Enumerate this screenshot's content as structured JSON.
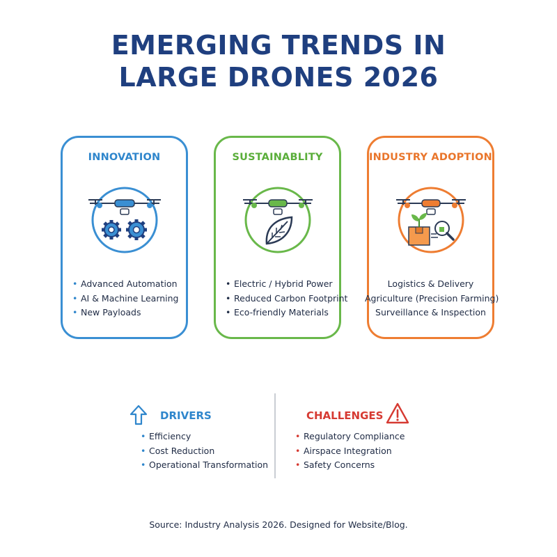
{
  "title": {
    "line1": "EMERGING TRENDS IN",
    "line2": "LARGE DRONES 2026"
  },
  "cards": [
    {
      "heading": "INNOVATION",
      "color": "#3a8fd3",
      "icon": "drone-gears-icon",
      "items": [
        "Advanced Automation",
        "AI & Machine Learning",
        "New Payloads"
      ]
    },
    {
      "heading": "SUSTAINABLITY",
      "color": "#69b84a",
      "icon": "drone-leaf-icon",
      "items": [
        "Electric / Hybrid Power",
        "Reduced Carbon Footprint",
        "Eco-friendly Materials"
      ]
    },
    {
      "heading": "INDUSTRY ADOPTION",
      "color": "#ee7d32",
      "icon": "drone-package-icon",
      "items": [
        "Logistics & Delivery",
        "Agriculture (Precision Farming)",
        "Surveillance & Inspection"
      ]
    }
  ],
  "drivers": {
    "heading": "DRIVERS",
    "icon": "up-arrow-icon",
    "color": "#2f86cc",
    "items": [
      "Efficiency",
      "Cost Reduction",
      "Operational Transformation"
    ]
  },
  "challenges": {
    "heading": "CHALLENGES",
    "icon": "warning-triangle-icon",
    "color": "#d63a32",
    "items": [
      "Regulatory Compliance",
      "Airspace Integration",
      "Safety Concerns"
    ]
  },
  "source": "Source: Industry Analysis 2026. Designed for Website/Blog."
}
